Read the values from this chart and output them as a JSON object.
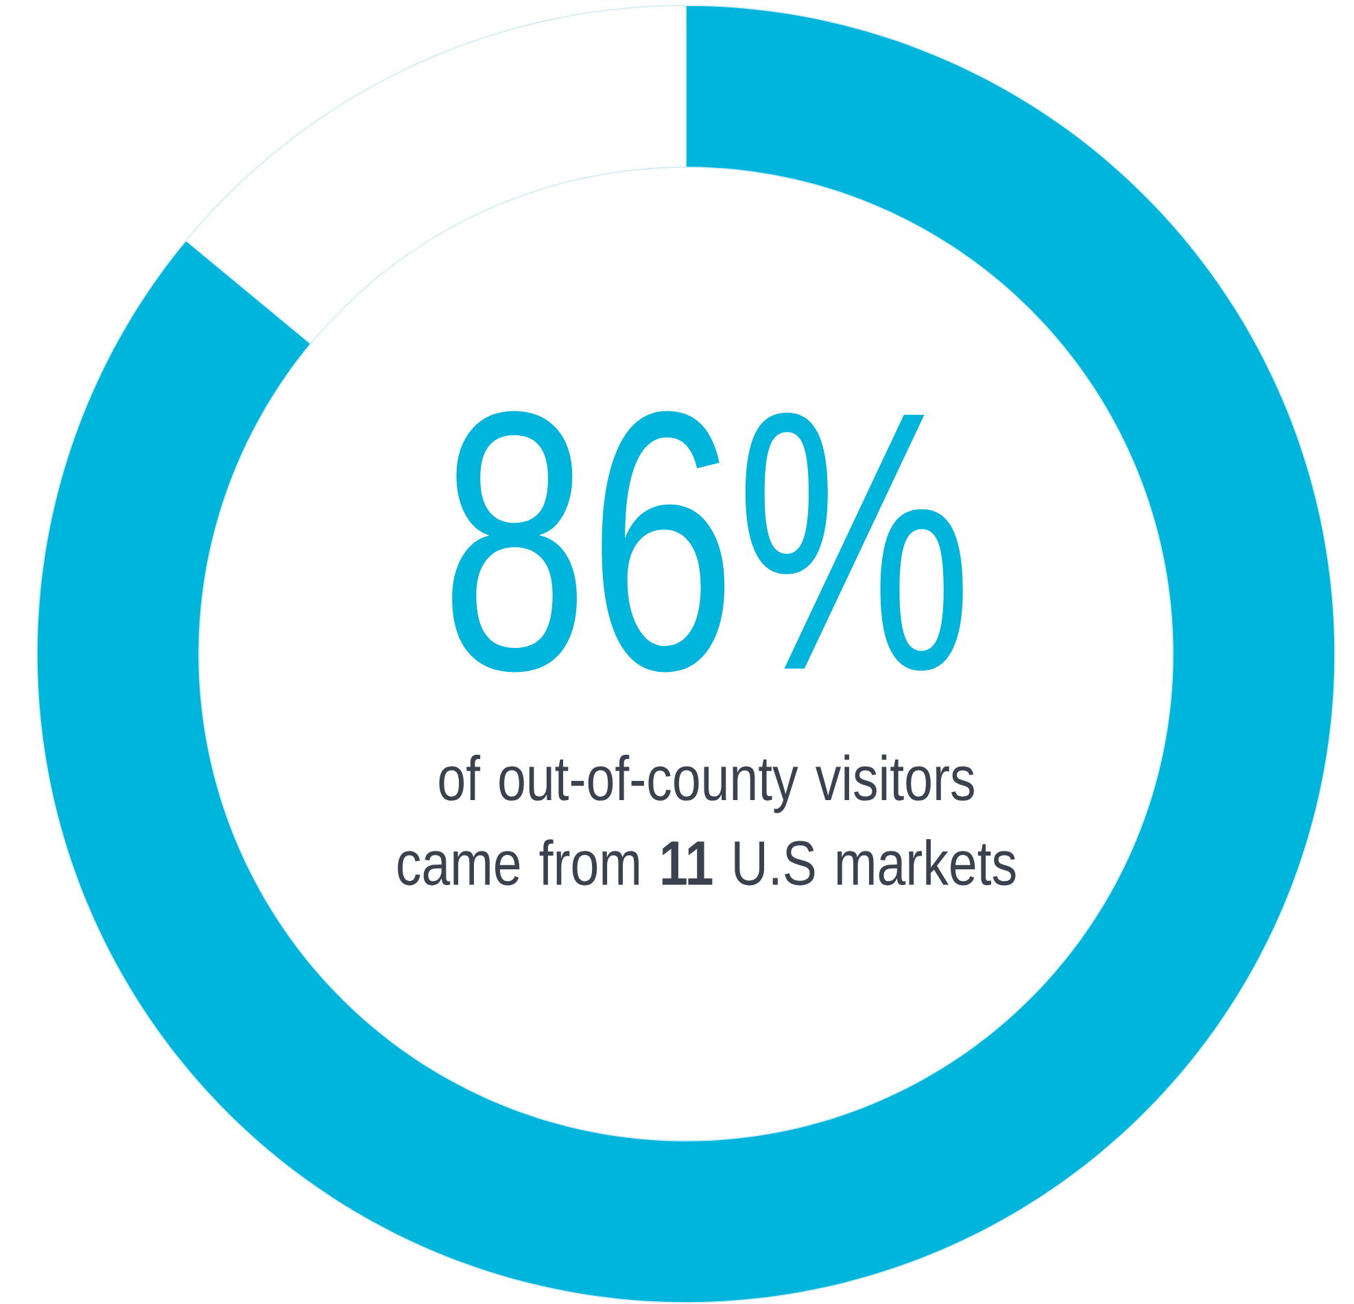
{
  "chart_data": {
    "type": "donut",
    "categories": [
      null,
      null
    ],
    "values": [
      86,
      14
    ],
    "colors": [
      "#00b5dc",
      "#ffffff"
    ],
    "annotations": [
      "86%",
      "of out-of-county visitors came from **11** U.S markets"
    ]
  }
}
